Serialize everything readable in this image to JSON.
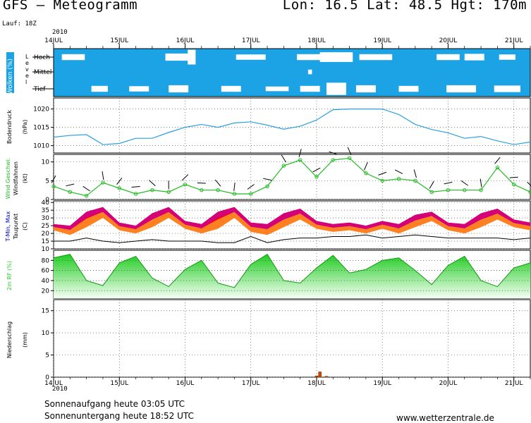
{
  "header": {
    "title": "GFS — Meteogramm",
    "location": "Lon: 16.5 Lat: 48.5 Hgt: 170m",
    "run": "Lauf: 18Z",
    "year": "2010"
  },
  "footer": {
    "sunrise": "Sonnenaufgang heute 03:05 UTC",
    "sunset": "Sonnenuntergang heute 18:52 UTC",
    "site": "www.wetterzentrale.de"
  },
  "colors": {
    "cloud_bg": "#1ba3e6",
    "pressure": "#2aa0e0",
    "wind": "#22bb22",
    "tmax": "#d4007a",
    "tmin": "#ff8020",
    "tmax_mid": "#ff0000",
    "dewpoint": "#000000",
    "rh": "#33cc33",
    "precip": "#cc4400"
  },
  "chart_data": [
    {
      "type": "area",
      "panel": "clouds",
      "ylabel": "Wolken (%)",
      "sublabel": "Level",
      "levels": [
        "Hoch",
        "Mittel",
        "Tief"
      ],
      "xticks": [
        "14JUL",
        "15JUL",
        "16JUL",
        "17JUL",
        "18JUL",
        "19JUL",
        "20JUL",
        "21JUL"
      ],
      "x_range_days": [
        14.0,
        21.25
      ],
      "cloud_bands": [
        {
          "level": "Hoch",
          "day": 14.3,
          "width": 0.35,
          "amount": 0.3
        },
        {
          "level": "Hoch",
          "day": 15.9,
          "width": 0.4,
          "amount": 0.4
        },
        {
          "level": "Hoch",
          "day": 16.1,
          "width": 0.12,
          "amount": 1.0
        },
        {
          "level": "Hoch",
          "day": 17.0,
          "width": 0.45,
          "amount": 0.25
        },
        {
          "level": "Hoch",
          "day": 17.9,
          "width": 0.4,
          "amount": 0.3
        },
        {
          "level": "Hoch",
          "day": 18.3,
          "width": 0.5,
          "amount": 0.6
        },
        {
          "level": "Hoch",
          "day": 18.9,
          "width": 0.5,
          "amount": 0.3
        },
        {
          "level": "Hoch",
          "day": 20.0,
          "width": 0.35,
          "amount": 0.3
        },
        {
          "level": "Hoch",
          "day": 20.4,
          "width": 0.3,
          "amount": 0.35
        },
        {
          "level": "Hoch",
          "day": 20.9,
          "width": 0.25,
          "amount": 0.25
        },
        {
          "level": "Mittel",
          "day": 17.9,
          "width": 0.06,
          "amount": 0.2
        },
        {
          "level": "Tief",
          "day": 14.7,
          "width": 0.25,
          "amount": 0.3
        },
        {
          "level": "Tief",
          "day": 15.3,
          "width": 0.3,
          "amount": 0.25
        },
        {
          "level": "Tief",
          "day": 15.9,
          "width": 0.3,
          "amount": 0.4
        },
        {
          "level": "Tief",
          "day": 16.7,
          "width": 0.3,
          "amount": 0.3
        },
        {
          "level": "Tief",
          "day": 17.4,
          "width": 0.35,
          "amount": 0.2
        },
        {
          "level": "Tief",
          "day": 17.9,
          "width": 0.3,
          "amount": 0.3
        },
        {
          "level": "Tief",
          "day": 18.3,
          "width": 0.3,
          "amount": 0.8
        },
        {
          "level": "Tief",
          "day": 18.75,
          "width": 0.3,
          "amount": 0.4
        },
        {
          "level": "Tief",
          "day": 19.4,
          "width": 0.3,
          "amount": 0.3
        },
        {
          "level": "Tief",
          "day": 20.2,
          "width": 0.45,
          "amount": 0.4
        },
        {
          "level": "Tief",
          "day": 20.9,
          "width": 0.4,
          "amount": 0.35
        }
      ]
    },
    {
      "type": "line",
      "panel": "pressure",
      "ylabel": "Bodendruck",
      "unit": "(hPa)",
      "yticks": [
        1010,
        1015,
        1020
      ],
      "ylim": [
        1008,
        1023
      ],
      "x": [
        14.0,
        14.25,
        14.5,
        14.75,
        15.0,
        15.25,
        15.5,
        15.75,
        16.0,
        16.25,
        16.5,
        16.75,
        17.0,
        17.25,
        17.5,
        17.75,
        18.0,
        18.25,
        18.5,
        18.75,
        19.0,
        19.25,
        19.5,
        19.75,
        20.0,
        20.25,
        20.5,
        20.75,
        21.0,
        21.25
      ],
      "values": [
        1012.3,
        1012.8,
        1013.0,
        1010.3,
        1010.6,
        1012.0,
        1012.0,
        1013.6,
        1015.0,
        1015.8,
        1015.0,
        1016.2,
        1016.5,
        1015.6,
        1014.5,
        1015.3,
        1017.0,
        1019.8,
        1020.0,
        1020.0,
        1020.0,
        1018.5,
        1015.8,
        1014.4,
        1013.5,
        1012.0,
        1012.5,
        1011.3,
        1010.3,
        1011.0
      ]
    },
    {
      "type": "line",
      "panel": "wind",
      "ylabel": "Wind Geschwi. Windfahnen",
      "unit": "(kt)",
      "yticks": [
        0,
        5,
        10
      ],
      "ylim": [
        0,
        12
      ],
      "x": [
        14.0,
        14.25,
        14.5,
        14.75,
        15.0,
        15.25,
        15.5,
        15.75,
        16.0,
        16.25,
        16.5,
        16.75,
        17.0,
        17.25,
        17.5,
        17.75,
        18.0,
        18.25,
        18.5,
        18.75,
        19.0,
        19.25,
        19.5,
        19.75,
        20.0,
        20.25,
        20.5,
        20.75,
        21.0,
        21.25
      ],
      "values": [
        3.5,
        2.0,
        1.0,
        4.5,
        3.0,
        1.5,
        2.5,
        2.0,
        4.0,
        2.5,
        2.5,
        1.5,
        1.5,
        3.5,
        9.0,
        10.5,
        6.0,
        10.5,
        11.0,
        7.0,
        5.0,
        5.5,
        5.0,
        2.0,
        2.5,
        2.5,
        2.5,
        8.5,
        4.0,
        2.0
      ]
    },
    {
      "type": "area",
      "panel": "temperature",
      "ylabel": "T-Min, Max Taupunkt",
      "unit": "(C)",
      "yticks": [
        10,
        15,
        20,
        25,
        30,
        35,
        40
      ],
      "ylim": [
        10,
        41
      ],
      "x": [
        14.0,
        14.25,
        14.5,
        14.75,
        15.0,
        15.25,
        15.5,
        15.75,
        16.0,
        16.25,
        16.5,
        16.75,
        17.0,
        17.25,
        17.5,
        17.75,
        18.0,
        18.25,
        18.5,
        18.75,
        19.0,
        19.25,
        19.5,
        19.75,
        20.0,
        20.25,
        20.5,
        20.75,
        21.0,
        21.25
      ],
      "tmax": [
        26,
        25,
        34,
        37,
        27,
        25,
        33,
        37,
        28,
        26,
        34,
        37,
        27,
        26,
        33,
        36,
        28,
        26,
        27,
        25,
        28,
        26,
        32,
        34,
        27,
        26,
        33,
        36,
        29,
        27
      ],
      "tmin": [
        22,
        19,
        24,
        30,
        22,
        20,
        24,
        30,
        23,
        20,
        23,
        30,
        21,
        19,
        24,
        29,
        23,
        21,
        22,
        20,
        23,
        20,
        24,
        28,
        22,
        20,
        24,
        29,
        24,
        22
      ],
      "dewpoint": [
        15,
        15,
        17,
        15,
        14,
        15,
        16,
        15,
        15,
        15,
        14,
        14,
        18,
        14,
        16,
        17,
        17,
        18,
        18,
        19,
        17,
        18,
        19,
        18,
        17,
        17,
        17,
        17,
        16,
        17
      ]
    },
    {
      "type": "area",
      "panel": "humidity",
      "ylabel": "2m RF (%)",
      "yticks": [
        20,
        40,
        60,
        80
      ],
      "ylim": [
        5,
        100
      ],
      "x": [
        14.0,
        14.25,
        14.5,
        14.75,
        15.0,
        15.25,
        15.5,
        15.75,
        16.0,
        16.25,
        16.5,
        16.75,
        17.0,
        17.25,
        17.5,
        17.75,
        18.0,
        18.25,
        18.5,
        18.75,
        19.0,
        19.25,
        19.5,
        19.75,
        20.0,
        20.25,
        20.5,
        20.75,
        21.0,
        21.25
      ],
      "values": [
        85,
        92,
        40,
        30,
        75,
        88,
        45,
        28,
        62,
        80,
        35,
        26,
        72,
        92,
        40,
        35,
        65,
        90,
        55,
        62,
        80,
        85,
        60,
        32,
        70,
        88,
        40,
        28,
        65,
        75
      ]
    },
    {
      "type": "bar",
      "panel": "precip",
      "ylabel": "Niederschlag",
      "unit": "(mm)",
      "yticks": [
        0,
        5,
        10,
        15
      ],
      "ylim": [
        0,
        17.5
      ],
      "x": [
        18.0,
        18.05,
        18.15
      ],
      "values": [
        0.3,
        1.2,
        0.2
      ]
    }
  ]
}
